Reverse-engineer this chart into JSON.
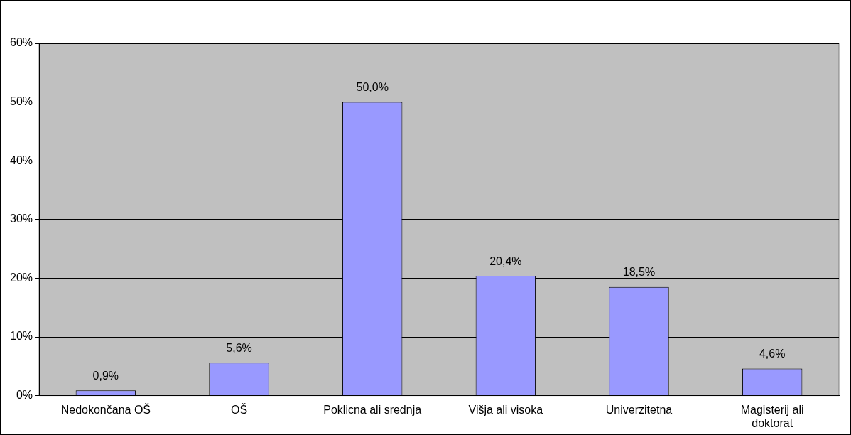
{
  "chart_data": {
    "type": "bar",
    "categories": [
      "Nedokončana OŠ",
      "OŠ",
      "Poklicna ali srednja",
      "Višja ali visoka",
      "Univerzitetna",
      "Magisterij ali doktorat"
    ],
    "values": [
      0.9,
      5.6,
      50.0,
      20.4,
      18.5,
      4.6
    ],
    "value_labels": [
      "0,9%",
      "5,6%",
      "50,0%",
      "20,4%",
      "18,5%",
      "4,6%"
    ],
    "color": "#9999ff",
    "ylim": [
      0,
      60
    ],
    "yticks": [
      {
        "value": 0,
        "label": "0%"
      },
      {
        "value": 10,
        "label": "10%"
      },
      {
        "value": 20,
        "label": "20%"
      },
      {
        "value": 30,
        "label": "30%"
      },
      {
        "value": 40,
        "label": "40%"
      },
      {
        "value": 50,
        "label": "50%"
      },
      {
        "value": 60,
        "label": "60%"
      }
    ],
    "grid": "y",
    "legend": false
  }
}
